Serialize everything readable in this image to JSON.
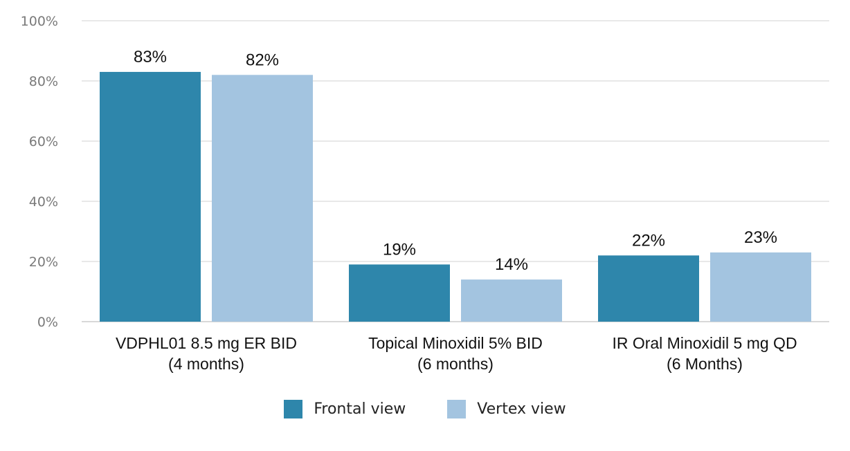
{
  "chart_data": {
    "type": "bar",
    "categories": [
      [
        "VDPHL01 8.5 mg ER BID",
        "(4 months)"
      ],
      [
        "Topical Minoxidil 5% BID",
        "(6 months)"
      ],
      [
        "IR Oral Minoxidil 5 mg QD",
        "(6 Months)"
      ]
    ],
    "series": [
      {
        "name": "Frontal view",
        "values": [
          83,
          19,
          22
        ],
        "labels": [
          "83%",
          "19%",
          "22%"
        ],
        "color": "#2e86ab"
      },
      {
        "name": "Vertex view",
        "values": [
          82,
          14,
          23
        ],
        "labels": [
          "82%",
          "14%",
          "23%"
        ],
        "color": "#a3c4e0"
      }
    ],
    "ylim": [
      0,
      100
    ],
    "yticks": [
      0,
      20,
      40,
      60,
      80,
      100
    ],
    "ytick_labels": [
      "0%",
      "20%",
      "40%",
      "60%",
      "80%",
      "100%"
    ],
    "grid": true,
    "legend_position": "bottom-center",
    "grid_color": "#e0e0e0",
    "axis_color": "#d8d8d8"
  }
}
